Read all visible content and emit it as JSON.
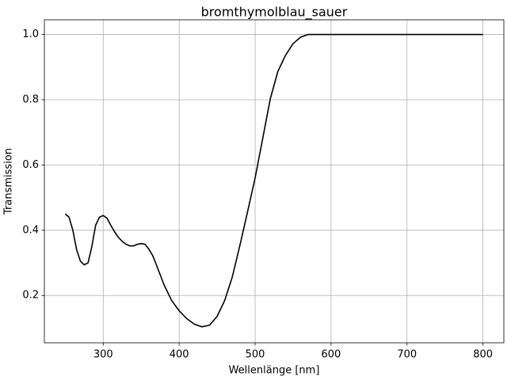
{
  "chart_data": {
    "type": "line",
    "title": "bromthymolblau_sauer",
    "x_label": "Wellenlänge [nm]",
    "y_label": "Transmission",
    "x": [
      250,
      255,
      260,
      265,
      270,
      275,
      280,
      285,
      290,
      295,
      300,
      305,
      310,
      315,
      320,
      325,
      330,
      335,
      340,
      345,
      350,
      355,
      360,
      365,
      370,
      380,
      390,
      400,
      410,
      420,
      430,
      440,
      450,
      460,
      470,
      480,
      490,
      500,
      510,
      520,
      530,
      540,
      550,
      560,
      570,
      575,
      600,
      700,
      800
    ],
    "values": [
      0.45,
      0.44,
      0.4,
      0.34,
      0.305,
      0.294,
      0.3,
      0.35,
      0.415,
      0.44,
      0.445,
      0.437,
      0.415,
      0.395,
      0.378,
      0.366,
      0.357,
      0.352,
      0.352,
      0.357,
      0.359,
      0.357,
      0.342,
      0.323,
      0.294,
      0.233,
      0.185,
      0.153,
      0.129,
      0.112,
      0.104,
      0.109,
      0.136,
      0.185,
      0.257,
      0.354,
      0.456,
      0.56,
      0.681,
      0.803,
      0.887,
      0.936,
      0.972,
      0.992,
      1.0,
      1.0,
      1.0,
      1.0,
      1.0
    ],
    "color": "#000000",
    "xlim": [
      222.5,
      827.5
    ],
    "xticks": [
      300,
      400,
      500,
      600,
      700,
      800
    ],
    "ylim": [
      0.055,
      1.045
    ],
    "yticks": [
      0.2,
      0.4,
      0.6,
      0.8,
      {
        "value": 1,
        "label": "1.0"
      }
    ],
    "grid": true
  }
}
